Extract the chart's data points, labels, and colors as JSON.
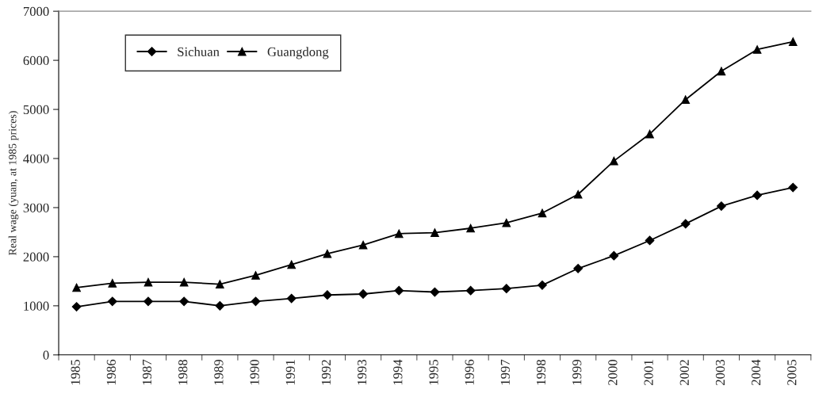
{
  "chart_data": {
    "type": "line",
    "ylabel": "Real wage (yuan, at 1985 prices)",
    "categories": [
      "1985",
      "1986",
      "1987",
      "1988",
      "1989",
      "1990",
      "1991",
      "1992",
      "1993",
      "1994",
      "1995",
      "1996",
      "1997",
      "1998",
      "1999",
      "2000",
      "2001",
      "2002",
      "2003",
      "2004",
      "2005"
    ],
    "series": [
      {
        "name": "Sichuan",
        "color": "#000000",
        "marker": "diamond",
        "values": [
          980,
          1090,
          1090,
          1090,
          1000,
          1090,
          1150,
          1220,
          1240,
          1310,
          1280,
          1310,
          1350,
          1420,
          1760,
          2020,
          2330,
          2670,
          3030,
          3250,
          3410
        ]
      },
      {
        "name": "Guangdong",
        "color": "#000000",
        "marker": "triangle",
        "values": [
          1370,
          1460,
          1480,
          1480,
          1440,
          1620,
          1840,
          2060,
          2240,
          2470,
          2490,
          2580,
          2690,
          2890,
          3270,
          3950,
          4500,
          5200,
          5780,
          6220,
          6380
        ]
      }
    ],
    "ylim": [
      0,
      7000
    ],
    "yticks": [
      0,
      1000,
      2000,
      3000,
      4000,
      5000,
      6000,
      7000
    ],
    "grid": false,
    "legend": "top left",
    "line_style": "solid"
  }
}
